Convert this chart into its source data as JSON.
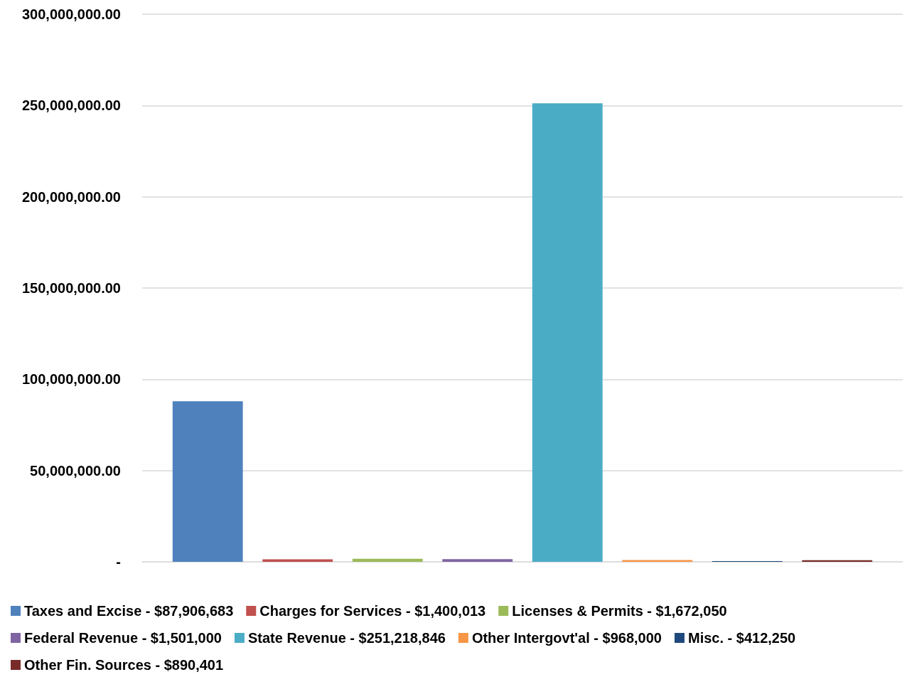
{
  "chart_data": {
    "type": "bar",
    "categories": [
      null
    ],
    "series": [
      {
        "name": "Taxes and Excise - $87,906,683",
        "color": "#4f81bd",
        "values": [
          87906683
        ]
      },
      {
        "name": "Charges for Services - $1,400,013",
        "color": "#c0504d",
        "values": [
          1400013
        ]
      },
      {
        "name": "Licenses & Permits - $1,672,050",
        "color": "#9bbb59",
        "values": [
          1672050
        ]
      },
      {
        "name": "Federal Revenue - $1,501,000",
        "color": "#8064a2",
        "values": [
          1501000
        ]
      },
      {
        "name": "State Revenue - $251,218,846",
        "color": "#4bacc6",
        "values": [
          251218846
        ]
      },
      {
        "name": "Other Intergovt'al - $968,000",
        "color": "#f79646",
        "values": [
          968000
        ]
      },
      {
        "name": "Misc. - $412,250",
        "color": "#1f497d",
        "values": [
          412250
        ]
      },
      {
        "name": "Other Fin. Sources - $890,401",
        "color": "#772c2a",
        "values": [
          890401
        ]
      }
    ],
    "ylim": [
      0,
      300000000
    ],
    "yticks": [
      {
        "value": 0,
        "label": "-"
      },
      {
        "value": 50000000,
        "label": "50,000,000.00"
      },
      {
        "value": 100000000,
        "label": "100,000,000.00"
      },
      {
        "value": 150000000,
        "label": "150,000,000.00"
      },
      {
        "value": 200000000,
        "label": "200,000,000.00"
      },
      {
        "value": 250000000,
        "label": "250,000,000.00"
      },
      {
        "value": 300000000,
        "label": "300,000,000.00"
      }
    ],
    "grid": "y",
    "legend": "bottom"
  }
}
